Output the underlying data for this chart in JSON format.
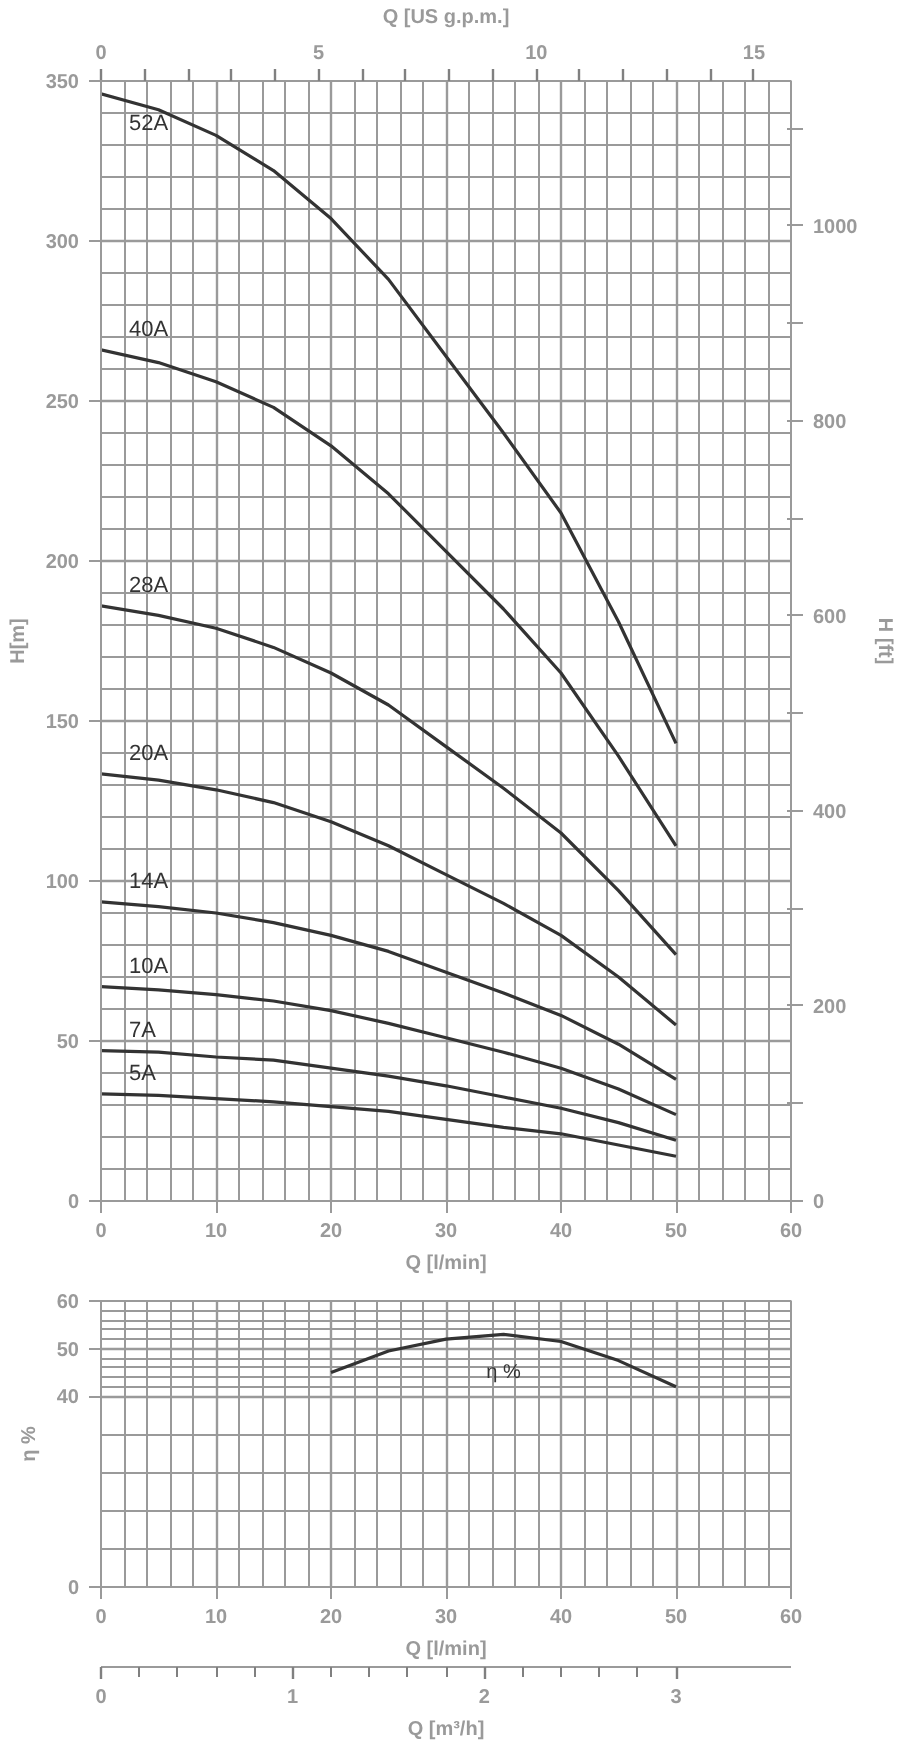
{
  "chart_data": [
    {
      "type": "line",
      "xlabel": "Q [l/min]",
      "ylabel": "H[m]",
      "y2label": "H [ft]",
      "x2label": "Q [US g.p.m.]",
      "x": [
        0,
        5,
        10,
        15,
        20,
        25,
        30,
        35,
        40,
        45,
        50
      ],
      "xlim": [
        0,
        60
      ],
      "xticks": [
        0,
        10,
        20,
        30,
        40,
        50,
        60
      ],
      "ylim": [
        0,
        350
      ],
      "yticks": [
        0,
        50,
        100,
        150,
        200,
        250,
        300,
        350
      ],
      "y2lim": [
        0,
        1148.3
      ],
      "y2ticks": [
        0,
        {
          "value": 100,
          "label": null
        },
        200,
        {
          "value": 300,
          "label": null
        },
        400,
        {
          "value": 500,
          "label": null
        },
        600,
        {
          "value": 700,
          "label": null
        },
        800,
        {
          "value": 900,
          "label": null
        },
        1000,
        {
          "value": 1100,
          "label": null
        }
      ],
      "x2lim": [
        0,
        15.85
      ],
      "x2ticks": [
        0,
        {
          "value": 1,
          "label": null
        },
        {
          "value": 2,
          "label": null
        },
        {
          "value": 3,
          "label": null
        },
        {
          "value": 4,
          "label": null
        },
        5,
        {
          "value": 6,
          "label": null
        },
        {
          "value": 7,
          "label": null
        },
        {
          "value": 8,
          "label": null
        },
        {
          "value": 9,
          "label": null
        },
        10,
        {
          "value": 11,
          "label": null
        },
        {
          "value": 12,
          "label": null
        },
        {
          "value": 13,
          "label": null
        },
        {
          "value": 14,
          "label": null
        },
        15
      ],
      "grid": true,
      "line_style": "solid",
      "marker": "none",
      "series": [
        {
          "name": "52A",
          "color": "#333333",
          "values": [
            346,
            341,
            333,
            322,
            307,
            288,
            264,
            240,
            215,
            181,
            143
          ]
        },
        {
          "name": "40A",
          "color": "#333333",
          "values": [
            266,
            262,
            256,
            248,
            236,
            221,
            203,
            185,
            165,
            139,
            111
          ]
        },
        {
          "name": "28A",
          "color": "#333333",
          "values": [
            186,
            183,
            179,
            173,
            165,
            155,
            142,
            129,
            115,
            97,
            77
          ]
        },
        {
          "name": "20A",
          "color": "#333333",
          "values": [
            133.5,
            131.5,
            128.5,
            124.5,
            118.5,
            111,
            102,
            93,
            83,
            70,
            55
          ]
        },
        {
          "name": "14A",
          "color": "#333333",
          "values": [
            93.5,
            92,
            90,
            87,
            83,
            78,
            71.5,
            65,
            58,
            49,
            38
          ]
        },
        {
          "name": "10A",
          "color": "#333333",
          "values": [
            67,
            66,
            64.5,
            62.5,
            59.5,
            55.5,
            51,
            46.5,
            41.5,
            35,
            27
          ]
        },
        {
          "name": "7A",
          "color": "#333333",
          "values": [
            47,
            46.5,
            45,
            44,
            41.5,
            39,
            36,
            32.5,
            29,
            24.5,
            19
          ]
        },
        {
          "name": "5A",
          "color": "#333333",
          "values": [
            33.5,
            33,
            32,
            31,
            29.5,
            28,
            25.5,
            23,
            21,
            17.5,
            14
          ]
        }
      ]
    },
    {
      "type": "line",
      "xlabel": "Q [l/min]",
      "ylabel": "η %",
      "x2label": "Q [m³/h]",
      "x": [
        20,
        25,
        30,
        35,
        40,
        45,
        50
      ],
      "xlim": [
        0,
        60
      ],
      "xticks": [
        0,
        10,
        20,
        30,
        40,
        50,
        60
      ],
      "ylim": [
        0,
        60
      ],
      "yticks": [
        0,
        40,
        50,
        60
      ],
      "x2lim": [
        0,
        3.6
      ],
      "x2ticks": [
        0,
        1,
        2,
        3
      ],
      "grid": true,
      "line_style": "solid",
      "marker": "none",
      "series": [
        {
          "name": "η %",
          "color": "#333333",
          "values": [
            45,
            49.5,
            52,
            53,
            51.5,
            47.5,
            42
          ]
        }
      ]
    }
  ]
}
